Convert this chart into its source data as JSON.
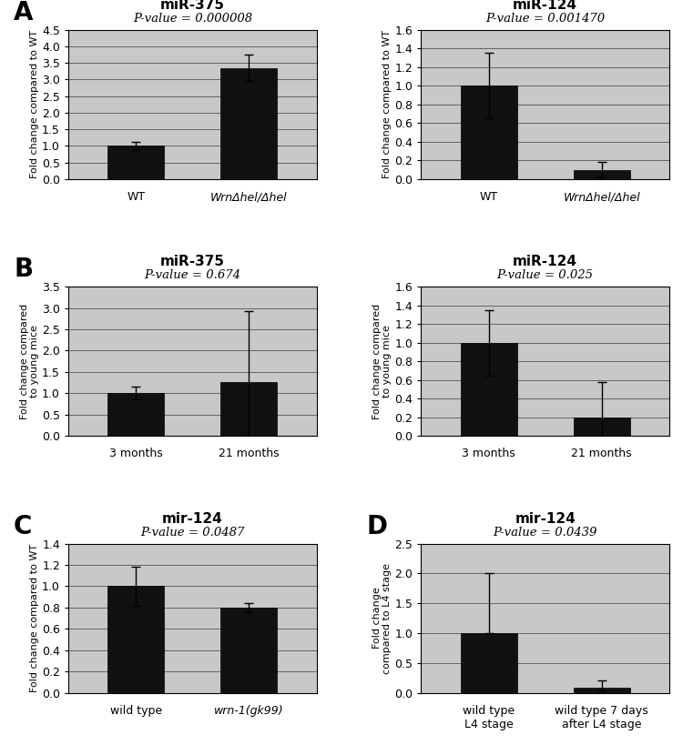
{
  "panels": {
    "A_left": {
      "title": "miR-375",
      "pvalue": "P-value = 0.000008",
      "categories": [
        "WT",
        "WrnΔhel/Δhel"
      ],
      "cat_italic": [
        false,
        true
      ],
      "values": [
        1.0,
        3.35
      ],
      "errors": [
        0.12,
        0.4
      ],
      "ylim": [
        0,
        4.5
      ],
      "yticks": [
        0.0,
        0.5,
        1.0,
        1.5,
        2.0,
        2.5,
        3.0,
        3.5,
        4.0,
        4.5
      ],
      "ylabel": "Fold change compared to WT",
      "panel_letter": "A",
      "error_asymmetric": false
    },
    "A_right": {
      "title": "miR-124",
      "pvalue": "P-value = 0.001470",
      "categories": [
        "WT",
        "WrnΔhel/Δhel"
      ],
      "cat_italic": [
        false,
        true
      ],
      "values": [
        1.0,
        0.1
      ],
      "errors": [
        0.35,
        0.08
      ],
      "ylim": [
        0,
        1.6
      ],
      "yticks": [
        0.0,
        0.2,
        0.4,
        0.6,
        0.8,
        1.0,
        1.2,
        1.4,
        1.6
      ],
      "ylabel": "Fold change compared to WT",
      "panel_letter": null,
      "error_asymmetric": false
    },
    "B_left": {
      "title": "miR-375",
      "pvalue": "P-value = 0.674",
      "categories": [
        "3 months",
        "21 months"
      ],
      "cat_italic": [
        false,
        false
      ],
      "values": [
        1.0,
        1.27
      ],
      "errors": [
        0.15,
        1.65
      ],
      "ylim": [
        0,
        3.5
      ],
      "yticks": [
        0.0,
        0.5,
        1.0,
        1.5,
        2.0,
        2.5,
        3.0,
        3.5
      ],
      "ylabel": "Fold change compared\nto young mice",
      "panel_letter": "B",
      "error_asymmetric": false
    },
    "B_right": {
      "title": "miR-124",
      "pvalue": "P-value = 0.025",
      "categories": [
        "3 months",
        "21 months"
      ],
      "cat_italic": [
        false,
        false
      ],
      "values": [
        1.0,
        0.2
      ],
      "errors": [
        0.35,
        0.38
      ],
      "ylim": [
        0,
        1.6
      ],
      "yticks": [
        0.0,
        0.2,
        0.4,
        0.6,
        0.8,
        1.0,
        1.2,
        1.4,
        1.6
      ],
      "ylabel": "Fold change compared\nto young mice",
      "panel_letter": null,
      "error_asymmetric": false
    },
    "C": {
      "title": "mir-124",
      "pvalue": "P-value = 0.0487",
      "categories": [
        "wild type",
        "wrn-1(gk99)"
      ],
      "cat_italic": [
        false,
        true
      ],
      "values": [
        1.0,
        0.8
      ],
      "errors": [
        0.18,
        0.04
      ],
      "ylim": [
        0,
        1.4
      ],
      "yticks": [
        0.0,
        0.2,
        0.4,
        0.6,
        0.8,
        1.0,
        1.2,
        1.4
      ],
      "ylabel": "Fold change compared to WT",
      "panel_letter": "C",
      "error_asymmetric": false
    },
    "D": {
      "title": "mir-124",
      "pvalue": "P-value = 0.0439",
      "categories": [
        "wild type\nL4 stage",
        "wild type 7 days\nafter L4 stage"
      ],
      "cat_italic": [
        false,
        false
      ],
      "values": [
        1.0,
        0.09
      ],
      "errors_lo": [
        0.0,
        0.05
      ],
      "errors_hi": [
        1.0,
        0.12
      ],
      "ylim": [
        0,
        2.5
      ],
      "yticks": [
        0.0,
        0.5,
        1.0,
        1.5,
        2.0,
        2.5
      ],
      "ylabel": "Fold change\ncompared to L4 stage",
      "panel_letter": "D",
      "error_asymmetric": true
    }
  },
  "bar_color": "#111111",
  "bg_color": "#c8c8c8",
  "grid_color": "#555555",
  "title_fontsize": 11,
  "pvalue_fontsize": 9.5,
  "ylabel_fontsize": 8,
  "tick_fontsize": 9,
  "panel_label_fontsize": 20
}
